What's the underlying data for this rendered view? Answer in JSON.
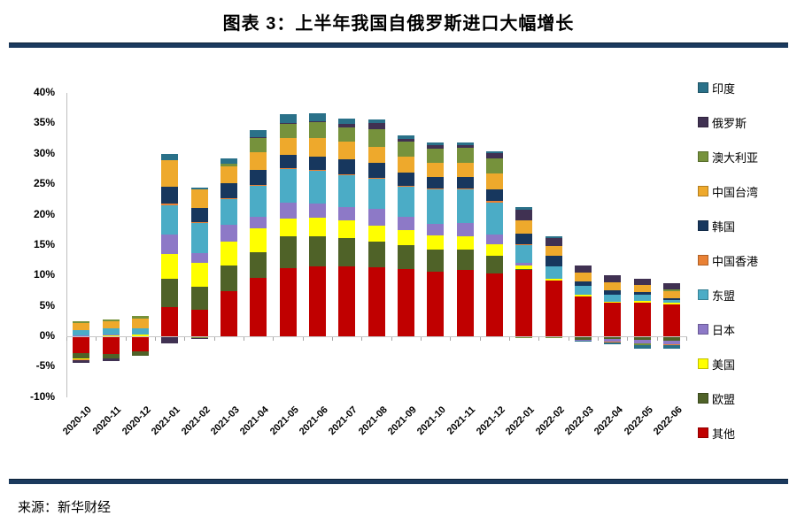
{
  "title": "图表 3：上半年我国自俄罗斯进口大幅增长",
  "source": "来源：新华财经",
  "colors": {
    "rule": "#1B3A5E",
    "axis_line": "#BFBFBF",
    "zero_line": "#C6C6C6",
    "tick": "#A6A6A6"
  },
  "chart_data": {
    "type": "bar",
    "stacked": true,
    "title": "图表 3：上半年我国自俄罗斯进口大幅增长",
    "unit": "percent (contribution to import growth)",
    "categories": [
      "2020-10",
      "2020-11",
      "2020-12",
      "2021-01",
      "2021-02",
      "2021-03",
      "2021-04",
      "2021-05",
      "2021-06",
      "2021-07",
      "2021-08",
      "2021-09",
      "2021-10",
      "2021-11",
      "2021-12",
      "2022-01",
      "2022-02",
      "2022-03",
      "2022-04",
      "2022-05",
      "2022-06"
    ],
    "series": [
      {
        "name": "印度",
        "color": "#2A7189",
        "values": [
          0,
          0,
          0,
          1.0,
          0.4,
          1.0,
          1.2,
          1.4,
          1.3,
          0.8,
          0.6,
          0.6,
          0.5,
          0.4,
          0.3,
          0.5,
          0.3,
          -0.15,
          -0.4,
          -0.5,
          -0.6
        ]
      },
      {
        "name": "俄罗斯",
        "color": "#403152",
        "values": [
          -0.5,
          -0.4,
          0,
          -1.0,
          -0.2,
          -0.2,
          0.1,
          0.2,
          0.1,
          0.6,
          0.9,
          0.4,
          0.5,
          0.5,
          0.8,
          1.8,
          1.3,
          1.2,
          1.2,
          1.0,
          1.0
        ]
      },
      {
        "name": "澳大利亚",
        "color": "#76923C",
        "values": [
          0.3,
          0.3,
          0.4,
          -0.2,
          -0.3,
          0.3,
          2.4,
          2.3,
          2.7,
          2.3,
          2.9,
          2.5,
          2.3,
          2.4,
          2.6,
          -0.3,
          -0.1,
          0,
          0,
          -0.4,
          0.3
        ]
      },
      {
        "name": "中国台湾",
        "color": "#EEA92C",
        "values": [
          1.2,
          1.2,
          1.6,
          4.4,
          3.0,
          2.9,
          2.9,
          2.8,
          3.0,
          2.9,
          2.7,
          2.6,
          2.4,
          2.4,
          2.6,
          2.1,
          1.6,
          1.5,
          1.4,
          1.1,
          1.2
        ]
      },
      {
        "name": "韩国",
        "color": "#17375E",
        "values": [
          0,
          0,
          0,
          2.8,
          2.3,
          2.4,
          2.4,
          2.2,
          2.3,
          2.5,
          2.4,
          2.2,
          1.9,
          1.9,
          1.9,
          1.7,
          1.8,
          0.7,
          0.6,
          0.5,
          0.3
        ]
      },
      {
        "name": "中国香港",
        "color": "#E98135",
        "values": [
          -0.1,
          0,
          0,
          0.2,
          0.1,
          0.1,
          0.1,
          0.1,
          0.1,
          0.15,
          0.1,
          0.1,
          0.15,
          0.15,
          0.2,
          0.1,
          0,
          0,
          -0.05,
          0,
          -0.1
        ]
      },
      {
        "name": "东盟",
        "color": "#4BACC6",
        "values": [
          0.8,
          0.9,
          1.0,
          4.8,
          5.0,
          4.3,
          5.1,
          5.5,
          5.4,
          5.3,
          5.1,
          5.0,
          5.6,
          5.5,
          5.2,
          3.0,
          2.0,
          1.5,
          1.2,
          1.0,
          0.4
        ]
      },
      {
        "name": "日本",
        "color": "#8D79C7",
        "values": [
          0.2,
          0.15,
          0,
          3.2,
          1.6,
          2.7,
          1.9,
          2.6,
          2.3,
          2.2,
          2.7,
          2.2,
          1.9,
          2.1,
          1.6,
          0.4,
          0,
          -0.1,
          -0.4,
          -0.5,
          -0.6
        ]
      },
      {
        "name": "美国",
        "color": "#FFFF00",
        "values": [
          -0.1,
          0.2,
          0.3,
          4.2,
          4.0,
          3.9,
          4.0,
          3.0,
          3.0,
          2.9,
          2.7,
          2.4,
          2.3,
          2.2,
          1.9,
          0.6,
          0.3,
          0.2,
          0.2,
          0.2,
          0.3
        ]
      },
      {
        "name": "欧盟",
        "color": "#4F6228",
        "values": [
          -0.9,
          -0.8,
          -0.8,
          4.6,
          3.8,
          4.3,
          4.2,
          5.2,
          5.0,
          4.6,
          4.1,
          3.9,
          3.7,
          3.4,
          2.9,
          0.2,
          -0.2,
          -0.6,
          -0.5,
          -0.6,
          -0.7
        ]
      },
      {
        "name": "其他",
        "color": "#C00000",
        "values": [
          -2.8,
          -2.9,
          -2.4,
          4.8,
          4.3,
          7.4,
          9.6,
          11.2,
          11.5,
          11.5,
          11.4,
          11.1,
          10.6,
          10.9,
          10.4,
          10.9,
          9.2,
          6.6,
          5.5,
          5.6,
          5.2
        ]
      }
    ],
    "stack_order": "series listed in legend order (top→bottom); bars stack bottom-up in reverse of this list",
    "y_ticks": [
      "40%",
      "35%",
      "30%",
      "25%",
      "20%",
      "15%",
      "10%",
      "5%",
      "0%",
      "-5%",
      "-10%"
    ],
    "ylim": [
      -10,
      40
    ],
    "xlabel": "",
    "ylabel": "",
    "grid": false,
    "legend_position": "right"
  }
}
